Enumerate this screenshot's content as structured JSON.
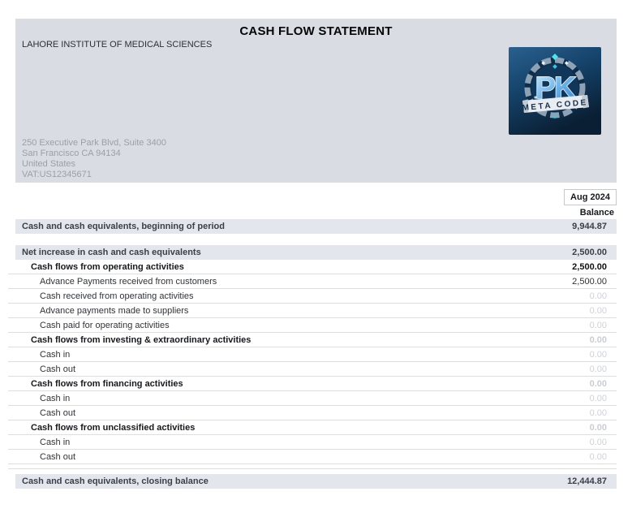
{
  "document": {
    "title": "CASH FLOW STATEMENT",
    "company": "LAHORE INSTITUTE OF MEDICAL SCIENCES",
    "address_lines": [
      "250 Executive Park Blvd, Suite 3400",
      "San Francisco CA 94134",
      "United States",
      "VAT:US12345671"
    ],
    "logo": {
      "monogram": "PK",
      "banner": "META CODE"
    }
  },
  "report": {
    "period": "Aug 2024",
    "column_header": "Balance",
    "rows": [
      {
        "label": "Cash and cash equivalents, beginning of period",
        "value": "9,944.87",
        "style": "highlight",
        "gap_after": true
      },
      {
        "label": "Net increase in cash and cash equivalents",
        "value": "2,500.00",
        "style": "highlight"
      },
      {
        "label": "Cash flows from operating activities",
        "value": "2,500.00",
        "style": "section"
      },
      {
        "label": "Advance Payments received from customers",
        "value": "2,500.00",
        "style": "leaf"
      },
      {
        "label": "Cash received from operating activities",
        "value": "0.00",
        "style": "leaf",
        "zero": true
      },
      {
        "label": "Advance payments made to suppliers",
        "value": "0.00",
        "style": "leaf",
        "zero": true
      },
      {
        "label": "Cash paid for operating activities",
        "value": "0.00",
        "style": "leaf",
        "zero": true
      },
      {
        "label": "Cash flows from investing & extraordinary activities",
        "value": "0.00",
        "style": "section",
        "zero": true
      },
      {
        "label": "Cash in",
        "value": "0.00",
        "style": "leaf",
        "zero": true
      },
      {
        "label": "Cash out",
        "value": "0.00",
        "style": "leaf",
        "zero": true
      },
      {
        "label": "Cash flows from financing activities",
        "value": "0.00",
        "style": "section",
        "zero": true
      },
      {
        "label": "Cash in",
        "value": "0.00",
        "style": "leaf",
        "zero": true
      },
      {
        "label": "Cash out",
        "value": "0.00",
        "style": "leaf",
        "zero": true
      },
      {
        "label": "Cash flows from unclassified activities",
        "value": "0.00",
        "style": "section",
        "zero": true
      },
      {
        "label": "Cash in",
        "value": "0.00",
        "style": "leaf",
        "zero": true
      },
      {
        "label": "Cash out",
        "value": "0.00",
        "style": "leaf",
        "zero": true
      },
      {
        "label": "Cash and cash equivalents, closing balance",
        "value": "12,444.87",
        "style": "highlight",
        "rule_before": true
      }
    ]
  },
  "colors": {
    "band_bg": "#d9dce3",
    "highlight_bg": "#e3e6ec",
    "row_border": "#dcdee3",
    "zero_value": "#cdd2d9",
    "dark_text": "#3a3f48",
    "logo_navy": "#0a1f33",
    "logo_blue": "#2f7fd4"
  }
}
